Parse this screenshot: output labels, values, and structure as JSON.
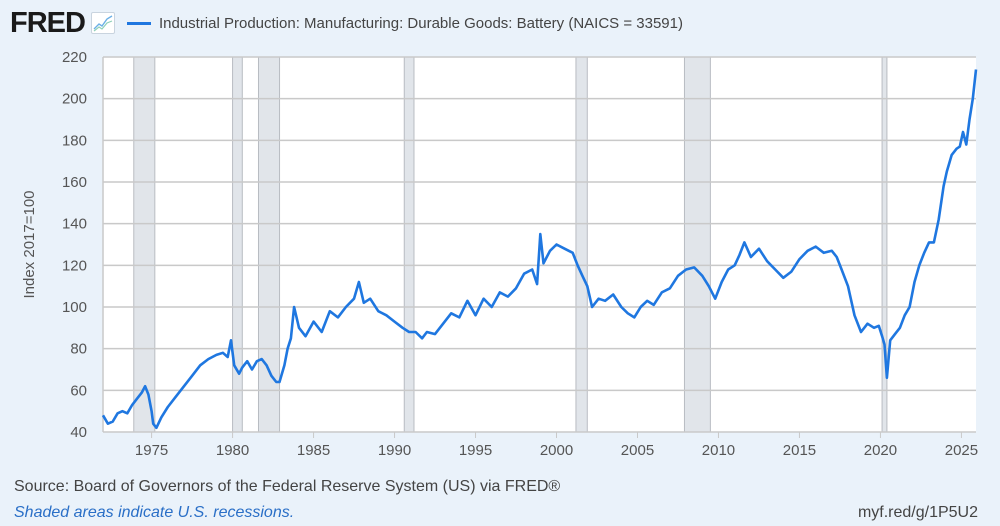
{
  "header": {
    "logo_text": "FRED",
    "logo_icon": "line-chart-icon",
    "series_color": "#1f77e0"
  },
  "footer": {
    "source": "Source: Board of Governors of the Federal Reserve System (US) via FRED®",
    "shaded_note": "Shaded areas indicate U.S. recessions.",
    "short_link": "myf.red/g/1P5U2"
  },
  "chart_data": {
    "type": "line",
    "title": "",
    "legend": [
      "Industrial Production: Manufacturing: Durable Goods: Battery (NAICS = 33591)"
    ],
    "legend_placement": "top-left",
    "xlabel": "",
    "ylabel": "Index 2017=100",
    "xlim": [
      1972.0,
      2025.9
    ],
    "ylim": [
      40,
      220
    ],
    "grid": true,
    "x_ticks": [
      1975,
      1980,
      1985,
      1990,
      1995,
      2000,
      2005,
      2010,
      2015,
      2020,
      2025
    ],
    "y_ticks": [
      40,
      60,
      80,
      100,
      120,
      140,
      160,
      180,
      200,
      220
    ],
    "recessions": [
      [
        1973.9,
        1975.2
      ],
      [
        1980.0,
        1980.6
      ],
      [
        1981.6,
        1982.9
      ],
      [
        1990.6,
        1991.2
      ],
      [
        2001.2,
        2001.9
      ],
      [
        2007.9,
        2009.5
      ],
      [
        2020.1,
        2020.4
      ]
    ],
    "series": [
      {
        "name": "Industrial Production: Manufacturing: Durable Goods: Battery (NAICS = 33591)",
        "color": "#1f77e0",
        "x": [
          1972.0,
          1972.3,
          1972.6,
          1972.9,
          1973.2,
          1973.5,
          1973.8,
          1974.1,
          1974.4,
          1974.6,
          1974.8,
          1975.0,
          1975.1,
          1975.3,
          1975.6,
          1976.0,
          1976.5,
          1977.0,
          1977.5,
          1978.0,
          1978.5,
          1979.0,
          1979.4,
          1979.7,
          1979.9,
          1980.1,
          1980.4,
          1980.6,
          1980.9,
          1981.2,
          1981.5,
          1981.8,
          1982.1,
          1982.4,
          1982.7,
          1982.9,
          1983.2,
          1983.4,
          1983.6,
          1983.8,
          1984.1,
          1984.5,
          1985.0,
          1985.5,
          1986.0,
          1986.5,
          1987.0,
          1987.5,
          1987.8,
          1988.1,
          1988.5,
          1989.0,
          1989.5,
          1990.0,
          1990.5,
          1990.9,
          1991.3,
          1991.7,
          1992.0,
          1992.5,
          1993.0,
          1993.5,
          1994.0,
          1994.5,
          1995.0,
          1995.5,
          1996.0,
          1996.5,
          1997.0,
          1997.5,
          1998.0,
          1998.5,
          1998.8,
          1999.0,
          1999.2,
          1999.6,
          2000.0,
          2000.5,
          2001.0,
          2001.3,
          2001.6,
          2001.9,
          2002.2,
          2002.6,
          2003.0,
          2003.5,
          2004.0,
          2004.4,
          2004.8,
          2005.2,
          2005.6,
          2006.0,
          2006.5,
          2007.0,
          2007.5,
          2008.0,
          2008.5,
          2009.0,
          2009.4,
          2009.8,
          2010.2,
          2010.6,
          2011.0,
          2011.3,
          2011.6,
          2012.0,
          2012.5,
          2013.0,
          2013.5,
          2014.0,
          2014.5,
          2015.0,
          2015.5,
          2016.0,
          2016.5,
          2017.0,
          2017.3,
          2017.6,
          2018.0,
          2018.4,
          2018.8,
          2019.2,
          2019.6,
          2019.9,
          2020.1,
          2020.25,
          2020.4,
          2020.6,
          2020.9,
          2021.2,
          2021.5,
          2021.8,
          2022.1,
          2022.4,
          2022.7,
          2023.0,
          2023.3,
          2023.6,
          2023.9,
          2024.1,
          2024.4,
          2024.7,
          2024.9,
          2025.1,
          2025.3,
          2025.5,
          2025.7,
          2025.9
        ],
        "values": [
          48,
          44,
          45,
          49,
          50,
          49,
          53,
          56,
          59,
          62,
          58,
          50,
          44,
          42,
          47,
          52,
          57,
          62,
          67,
          72,
          75,
          77,
          78,
          76,
          84,
          72,
          68,
          71,
          74,
          70,
          74,
          75,
          72,
          67,
          64,
          64,
          72,
          80,
          85,
          100,
          90,
          86,
          93,
          88,
          98,
          95,
          100,
          104,
          112,
          102,
          104,
          98,
          96,
          93,
          90,
          88,
          88,
          85,
          88,
          87,
          92,
          97,
          95,
          103,
          96,
          104,
          100,
          107,
          105,
          109,
          116,
          118,
          111,
          135,
          121,
          127,
          130,
          128,
          126,
          120,
          115,
          110,
          100,
          104,
          103,
          106,
          100,
          97,
          95,
          100,
          103,
          101,
          107,
          109,
          115,
          118,
          119,
          115,
          110,
          104,
          112,
          118,
          120,
          125,
          131,
          124,
          128,
          122,
          118,
          114,
          117,
          123,
          127,
          129,
          126,
          127,
          124,
          118,
          110,
          96,
          88,
          92,
          90,
          91,
          86,
          82,
          66,
          84,
          87,
          90,
          96,
          100,
          112,
          120,
          126,
          131,
          131,
          142,
          158,
          165,
          173,
          176,
          177,
          184,
          178,
          190,
          200,
          214
        ]
      }
    ]
  }
}
